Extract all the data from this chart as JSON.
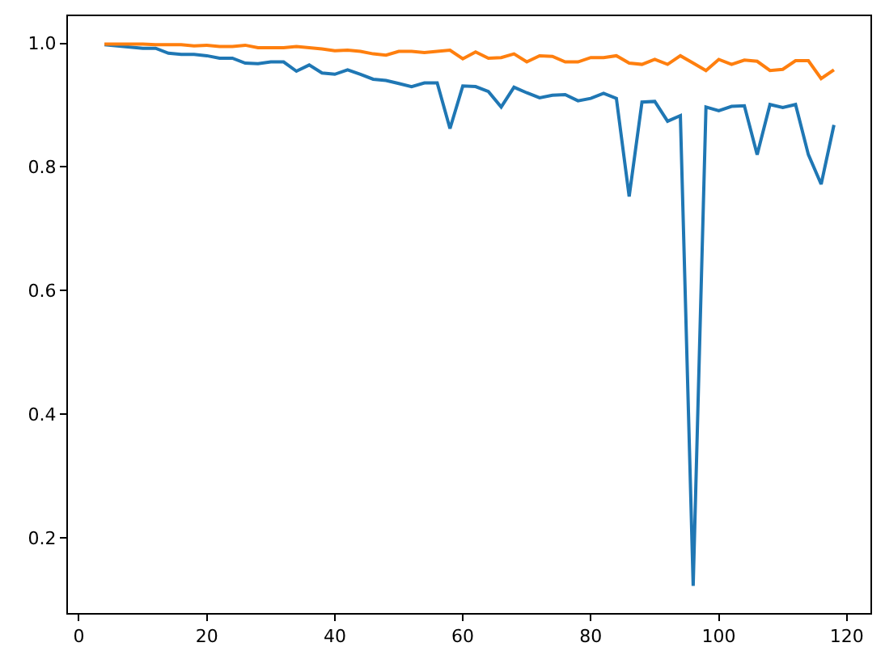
{
  "chart_data": {
    "type": "line",
    "x": [
      4,
      6,
      8,
      10,
      12,
      14,
      16,
      18,
      20,
      22,
      24,
      26,
      28,
      30,
      32,
      34,
      36,
      38,
      40,
      42,
      44,
      46,
      48,
      50,
      52,
      54,
      56,
      58,
      60,
      62,
      64,
      66,
      68,
      70,
      72,
      74,
      76,
      78,
      80,
      82,
      84,
      86,
      88,
      90,
      92,
      94,
      96,
      98,
      100,
      102,
      104,
      106,
      108,
      110,
      112,
      114,
      116,
      118
    ],
    "series": [
      {
        "color": "#1f77b4",
        "values": [
          0.998,
          0.996,
          0.994,
          0.992,
          0.992,
          0.984,
          0.982,
          0.982,
          0.98,
          0.976,
          0.976,
          0.968,
          0.967,
          0.97,
          0.97,
          0.955,
          0.965,
          0.952,
          0.95,
          0.957,
          0.95,
          0.942,
          0.94,
          0.935,
          0.93,
          0.936,
          0.936,
          0.862,
          0.931,
          0.93,
          0.922,
          0.897,
          0.929,
          0.92,
          0.912,
          0.916,
          0.917,
          0.907,
          0.911,
          0.919,
          0.911,
          0.752,
          0.905,
          0.906,
          0.874,
          0.883,
          0.122,
          0.897,
          0.891,
          0.898,
          0.899,
          0.82,
          0.901,
          0.896,
          0.901,
          0.82,
          0.772,
          0.868
        ]
      },
      {
        "color": "#ff7f0e",
        "values": [
          0.999,
          0.999,
          0.999,
          0.999,
          0.998,
          0.998,
          0.998,
          0.996,
          0.997,
          0.995,
          0.995,
          0.997,
          0.993,
          0.993,
          0.993,
          0.995,
          0.993,
          0.991,
          0.988,
          0.989,
          0.987,
          0.983,
          0.981,
          0.987,
          0.987,
          0.985,
          0.987,
          0.989,
          0.975,
          0.986,
          0.976,
          0.977,
          0.983,
          0.97,
          0.98,
          0.979,
          0.97,
          0.97,
          0.977,
          0.977,
          0.98,
          0.968,
          0.966,
          0.974,
          0.966,
          0.98,
          0.968,
          0.956,
          0.974,
          0.966,
          0.973,
          0.971,
          0.956,
          0.958,
          0.972,
          0.972,
          0.943,
          0.957
        ]
      }
    ],
    "xlim": [
      -1.7,
      123.7
    ],
    "ylim": [
      0.078,
      1.044
    ],
    "xticks": [
      0,
      20,
      40,
      60,
      80,
      100,
      120
    ],
    "yticks": [
      0.2,
      0.4,
      0.6,
      0.8,
      {
        "value": 1,
        "label": "1.0"
      }
    ],
    "grid": false,
    "marker": "none",
    "line_style": "solid"
  }
}
